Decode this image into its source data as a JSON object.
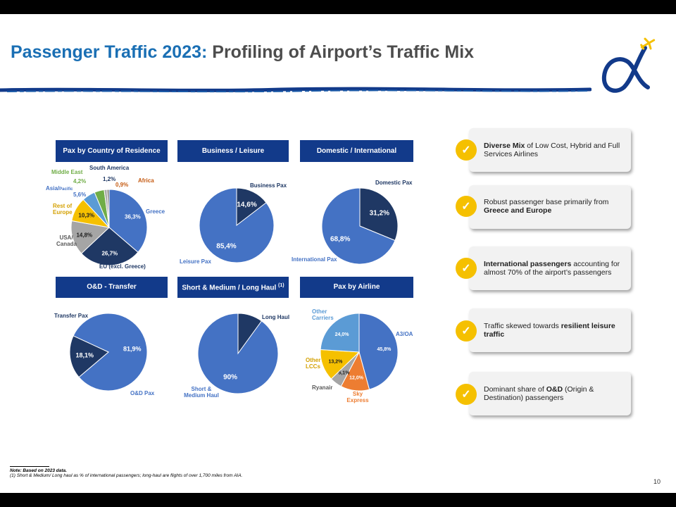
{
  "title": {
    "highlight": "Passenger Traffic 2023:",
    "rest": "Profiling of Airport’s Traffic Mix"
  },
  "headers": {
    "country": "Pax by Country of Residence",
    "business": "Business / Leisure",
    "domestic": "Domestic / International",
    "od": "O&D - Transfer",
    "haul": "Short & Medium / Long Haul",
    "haul_sup": "(1)",
    "airline": "Pax by Airline"
  },
  "colors": {
    "navy": "#1f3864",
    "blue": "#4472c4",
    "gold": "#f5c000",
    "check": "#f5c000",
    "header": "#123a8a"
  },
  "chart_data": [
    {
      "id": "country",
      "type": "pie",
      "title": "Pax by Country of Residence",
      "categories": [
        "Greece",
        "EU (excl. Greece)",
        "USA/ Canada",
        "Rest of Europe",
        "Asia/ Pacific",
        "Middle East",
        "South America",
        "Africa"
      ],
      "values": [
        36.3,
        26.7,
        14.8,
        10.3,
        5.6,
        4.2,
        1.2,
        0.9
      ],
      "value_labels": [
        "36,3%",
        "26,7%",
        "14,8%",
        "10,3%",
        "5,6%",
        "4,2%",
        "1,2%",
        "0,9%"
      ],
      "colors": [
        "#4472c4",
        "#1f3864",
        "#a5a5a5",
        "#f5c000",
        "#5b9bd5",
        "#70ad47",
        "#a9a9a9",
        "#7f7f7f"
      ]
    },
    {
      "id": "business",
      "type": "pie",
      "title": "Business / Leisure",
      "categories": [
        "Business Pax",
        "Leisure Pax"
      ],
      "values": [
        14.6,
        85.4
      ],
      "value_labels": [
        "14,6%",
        "85,4%"
      ],
      "colors": [
        "#1f3864",
        "#4472c4"
      ]
    },
    {
      "id": "domestic",
      "type": "pie",
      "title": "Domestic / International",
      "categories": [
        "Domestic Pax",
        "International Pax"
      ],
      "values": [
        31.2,
        68.8
      ],
      "value_labels": [
        "31,2%",
        "68,8%"
      ],
      "colors": [
        "#1f3864",
        "#4472c4"
      ]
    },
    {
      "id": "od",
      "type": "pie",
      "title": "O&D - Transfer",
      "categories": [
        "O&D Pax",
        "Transfer Pax"
      ],
      "values": [
        81.9,
        18.1
      ],
      "value_labels": [
        "81,9%",
        "18,1%"
      ],
      "colors": [
        "#4472c4",
        "#1f3864"
      ]
    },
    {
      "id": "haul",
      "type": "pie",
      "title": "Short & Medium / Long Haul",
      "categories": [
        "Long Haul",
        "Short & Medium Haul"
      ],
      "values": [
        10,
        90
      ],
      "value_labels": [
        "",
        "90%"
      ],
      "colors": [
        "#1f3864",
        "#4472c4"
      ]
    },
    {
      "id": "airline",
      "type": "pie",
      "title": "Pax by Airline",
      "categories": [
        "A3/OA",
        "Sky Express",
        "Ryanair",
        "Other LCCs",
        "Other Carriers"
      ],
      "values": [
        45.8,
        12.0,
        5.1,
        13.2,
        24.0
      ],
      "value_labels": [
        "45,8%",
        "12,0%",
        "5,1%",
        "13,2%",
        "24,0%"
      ],
      "colors": [
        "#4472c4",
        "#ed7d31",
        "#a5a5a5",
        "#f5c000",
        "#5b9bd5"
      ]
    }
  ],
  "labels": {
    "country": {
      "middle_east": "Middle East",
      "south_america": "South America",
      "africa": "Africa",
      "asia": "Asia/",
      "pacific": "Pacific",
      "rest_europe": "Rest of Europe",
      "usa": "USA/ Canada",
      "greece": "Greece",
      "eu": "EU (excl. Greece)"
    },
    "business": {
      "business": "Business Pax",
      "leisure": "Leisure Pax"
    },
    "domestic": {
      "domestic": "Domestic Pax",
      "international": "International Pax"
    },
    "od": {
      "transfer": "Transfer Pax",
      "od": "O&D Pax"
    },
    "haul": {
      "long": "Long Haul",
      "short": "Short & Medium Haul"
    },
    "airline": {
      "other_carriers": "Other Carriers",
      "a3": "A3/OA",
      "other_lccs": "Other LCCs",
      "ryanair": "Ryanair",
      "sky": "Sky Express"
    }
  },
  "cards": [
    {
      "bold1": "Diverse Mix",
      "text1": " of Low Cost, Hybrid and Full Services Airlines",
      "bold2": "",
      "text2": ""
    },
    {
      "bold1": "",
      "text1": "Robust passenger base primarily from ",
      "bold2": "Greece and Europe",
      "text2": ""
    },
    {
      "bold1": "International passengers",
      "text1": " accounting for almost 70% of the airport’s passengers",
      "bold2": "",
      "text2": ""
    },
    {
      "bold1": "",
      "text1": "Traffic skewed towards ",
      "bold2": "resilient leisure traffic",
      "text2": ""
    },
    {
      "bold1": "",
      "text1": "Dominant share of ",
      "bold2": "O&D",
      "text2": " (Origin & Destination) passengers"
    }
  ],
  "check_symbol": "✓",
  "note": {
    "line1": "Note: Based on 2023 data.",
    "line2": "(1)   Short & Medium/ Long haul as % of international passengers; long-haul are flights of over 1,700 miles from AIA."
  },
  "page_number": "10"
}
